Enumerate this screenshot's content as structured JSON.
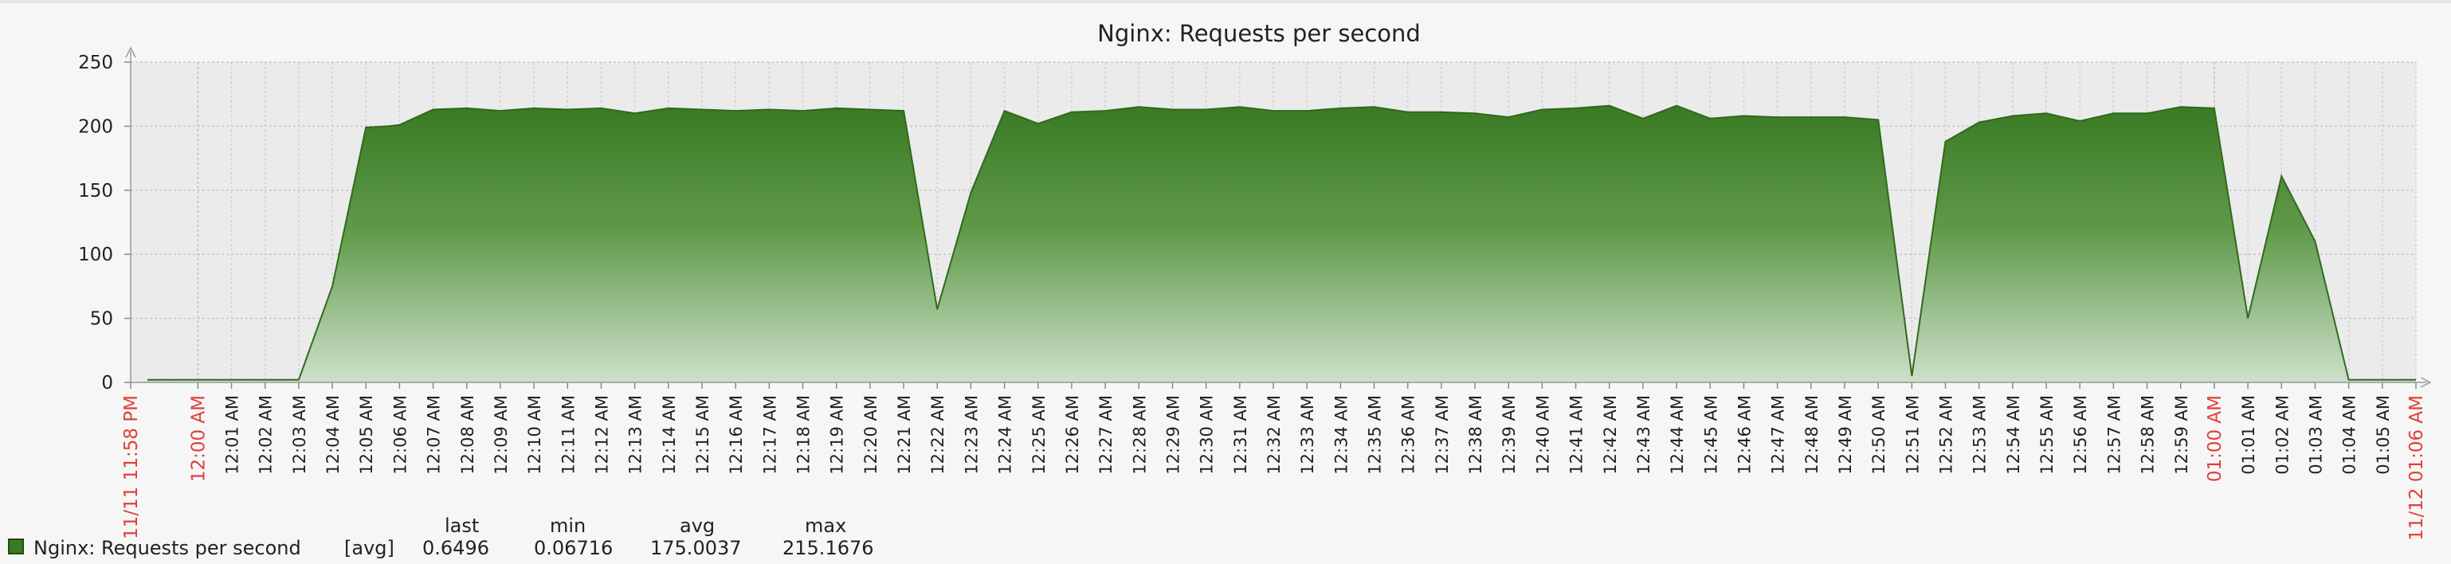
{
  "chart_data": {
    "type": "area",
    "title": "Nginx: Requests per second",
    "ylim": [
      0,
      250
    ],
    "yticks": [
      0,
      50,
      100,
      150,
      200,
      250
    ],
    "grid": true,
    "x_start_label": "11/11 11:58 PM",
    "x_end_label": "11/12 01:06 AM",
    "x_tick_labels": [
      "12:00 AM",
      "12:01 AM",
      "12:02 AM",
      "12:03 AM",
      "12:04 AM",
      "12:05 AM",
      "12:06 AM",
      "12:07 AM",
      "12:08 AM",
      "12:09 AM",
      "12:10 AM",
      "12:11 AM",
      "12:12 AM",
      "12:13 AM",
      "12:14 AM",
      "12:15 AM",
      "12:16 AM",
      "12:17 AM",
      "12:18 AM",
      "12:19 AM",
      "12:20 AM",
      "12:21 AM",
      "12:22 AM",
      "12:23 AM",
      "12:24 AM",
      "12:25 AM",
      "12:26 AM",
      "12:27 AM",
      "12:28 AM",
      "12:29 AM",
      "12:30 AM",
      "12:31 AM",
      "12:32 AM",
      "12:33 AM",
      "12:34 AM",
      "12:35 AM",
      "12:36 AM",
      "12:37 AM",
      "12:38 AM",
      "12:39 AM",
      "12:40 AM",
      "12:41 AM",
      "12:42 AM",
      "12:43 AM",
      "12:44 AM",
      "12:45 AM",
      "12:46 AM",
      "12:47 AM",
      "12:48 AM",
      "12:49 AM",
      "12:50 AM",
      "12:51 AM",
      "12:52 AM",
      "12:53 AM",
      "12:54 AM",
      "12:55 AM",
      "12:56 AM",
      "12:57 AM",
      "12:58 AM",
      "12:59 AM",
      "01:00 AM",
      "01:01 AM",
      "01:02 AM",
      "01:03 AM",
      "01:04 AM",
      "01:05 AM"
    ],
    "x_highlight_labels": [
      "12:00 AM",
      "01:00 AM"
    ],
    "series": [
      {
        "name": "Nginx: Requests per second",
        "color": "#3a7a24",
        "x": [
          "11:58:30 PM",
          "12:00:00 AM",
          "12:01:00 AM",
          "12:02:00 AM",
          "12:03:00 AM",
          "12:04:00 AM",
          "12:05:00 AM",
          "12:05:40 AM",
          "12:06:00 AM",
          "12:07:00 AM",
          "12:08:00 AM",
          "12:09:00 AM",
          "12:10:00 AM",
          "12:11:00 AM",
          "12:12:00 AM",
          "12:13:00 AM",
          "12:14:00 AM",
          "12:15:00 AM",
          "12:16:00 AM",
          "12:17:00 AM",
          "12:18:00 AM",
          "12:19:00 AM",
          "12:20:00 AM",
          "12:21:00 AM",
          "12:22:00 AM",
          "12:23:00 AM",
          "12:24:00 AM",
          "12:25:00 AM",
          "12:26:00 AM",
          "12:27:00 AM",
          "12:28:00 AM",
          "12:29:00 AM",
          "12:30:00 AM",
          "12:31:00 AM",
          "12:32:00 AM",
          "12:33:00 AM",
          "12:34:00 AM",
          "12:35:00 AM",
          "12:36:00 AM",
          "12:37:00 AM",
          "12:38:00 AM",
          "12:39:00 AM",
          "12:40:00 AM",
          "12:41:00 AM",
          "12:42:00 AM",
          "12:43:00 AM",
          "12:44:00 AM",
          "12:45:00 AM",
          "12:46:00 AM",
          "12:47:00 AM",
          "12:48:00 AM",
          "12:49:00 AM",
          "12:50:00 AM",
          "12:51:00 AM",
          "12:52:00 AM",
          "12:53:00 AM",
          "12:54:00 AM",
          "12:55:00 AM",
          "12:56:00 AM",
          "12:57:00 AM",
          "12:58:00 AM",
          "12:59:00 AM",
          "01:00:00 AM",
          "01:01:00 AM",
          "01:02:00 AM",
          "01:03:00 AM",
          "01:04:00 AM",
          "01:05:00 AM",
          "01:06:00 AM"
        ],
        "values": [
          2,
          2,
          2,
          2,
          2,
          75,
          199,
          200,
          201,
          213,
          214,
          212,
          214,
          213,
          214,
          210,
          214,
          213,
          212,
          213,
          212,
          214,
          213,
          212,
          57,
          148,
          212,
          202,
          211,
          212,
          215,
          213,
          213,
          215,
          212,
          212,
          214,
          215,
          211,
          211,
          210,
          207,
          213,
          214,
          216,
          206,
          216,
          206,
          208,
          207,
          207,
          207,
          205,
          5,
          188,
          203,
          208,
          210,
          204,
          210,
          210,
          215,
          214,
          50,
          161,
          110,
          2,
          2,
          2
        ]
      }
    ],
    "legend": {
      "columns": [
        "last",
        "min",
        "avg",
        "max"
      ],
      "entry": {
        "name": "Nginx: Requests per second",
        "function": "[avg]",
        "last": "0.6496",
        "min": "0.06716",
        "avg": "175.0037",
        "max": "215.1676"
      }
    }
  }
}
